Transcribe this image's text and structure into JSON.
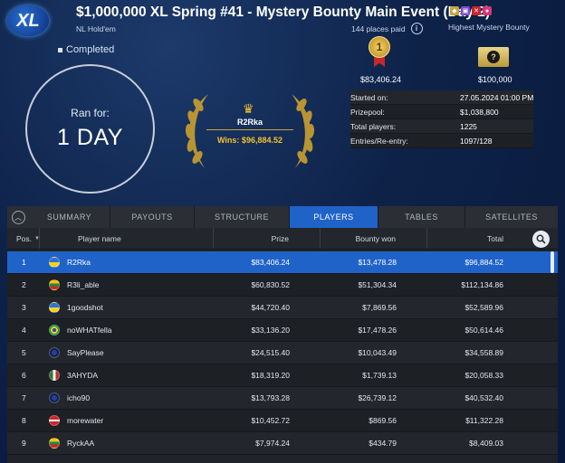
{
  "header": {
    "logo_text": "XL",
    "title": "$1,000,000 XL Spring #41 - Mystery Bounty Main Event (Day 2)",
    "game": "NL Hold'em",
    "status": "Completed",
    "places_paid": "144 places paid",
    "info_icon": "i",
    "mystery_label": "Highest Mystery Bounty"
  },
  "ran_for": {
    "label": "Ran for:",
    "value": "1 DAY"
  },
  "winner": {
    "name": "R2Rka",
    "wins": "Wins: $96,884.52"
  },
  "first_prize": {
    "medal": "1",
    "value": "$83,406.24"
  },
  "mystery_bounty": {
    "symbol": "?",
    "value": "$100,000"
  },
  "stats": [
    {
      "label": "Started on:",
      "value": "27.05.2024   01:00 PM"
    },
    {
      "label": "Prizepool:",
      "value": "$1,038,800"
    },
    {
      "label": "Total players:",
      "value": "1225"
    },
    {
      "label": "Entries/Re-entry:",
      "value": "1097/128"
    }
  ],
  "tabs": [
    "SUMMARY",
    "PAYOUTS",
    "STRUCTURE",
    "PLAYERS",
    "TABLES",
    "SATELLITES"
  ],
  "active_tab": "PLAYERS",
  "columns": [
    "Pos.",
    "Player name",
    "Prize",
    "Bounty won",
    "Total"
  ],
  "players": [
    {
      "pos": "1",
      "name": "R2Rka",
      "prize": "$83,406.24",
      "bounty": "$13,478.28",
      "total": "$96,884.52",
      "flag": "ukraine"
    },
    {
      "pos": "2",
      "name": "R3li_able",
      "prize": "$60,830.52",
      "bounty": "$51,304.34",
      "total": "$112,134.86",
      "flag": "lithuania"
    },
    {
      "pos": "3",
      "name": "1goodshot",
      "prize": "$44,720.40",
      "bounty": "$7,869.56",
      "total": "$52,589.96",
      "flag": "ukraine"
    },
    {
      "pos": "4",
      "name": "noWHATfella",
      "prize": "$33,136.20",
      "bounty": "$17,478.26",
      "total": "$50,614.46",
      "flag": "brazil"
    },
    {
      "pos": "5",
      "name": "SayPlease",
      "prize": "$24,515.40",
      "bounty": "$10,043.49",
      "total": "$34,558.89",
      "flag": "unknown"
    },
    {
      "pos": "6",
      "name": "3AHYDA",
      "prize": "$18,319.20",
      "bounty": "$1,739.13",
      "total": "$20,058.33",
      "flag": "mexico"
    },
    {
      "pos": "7",
      "name": "icho90",
      "prize": "$13,793.28",
      "bounty": "$26,739.12",
      "total": "$40,532.40",
      "flag": "unknown"
    },
    {
      "pos": "8",
      "name": "morewater",
      "prize": "$10,452.72",
      "bounty": "$869.56",
      "total": "$11,322.28",
      "flag": "denmark"
    },
    {
      "pos": "9",
      "name": "RyckAA",
      "prize": "$7,974.24",
      "bounty": "$434.79",
      "total": "$8,409.03",
      "flag": "lithuania"
    }
  ],
  "colors": {
    "accent": "#1f63c9",
    "gold": "#f2c12e",
    "panel": "#20232a"
  }
}
